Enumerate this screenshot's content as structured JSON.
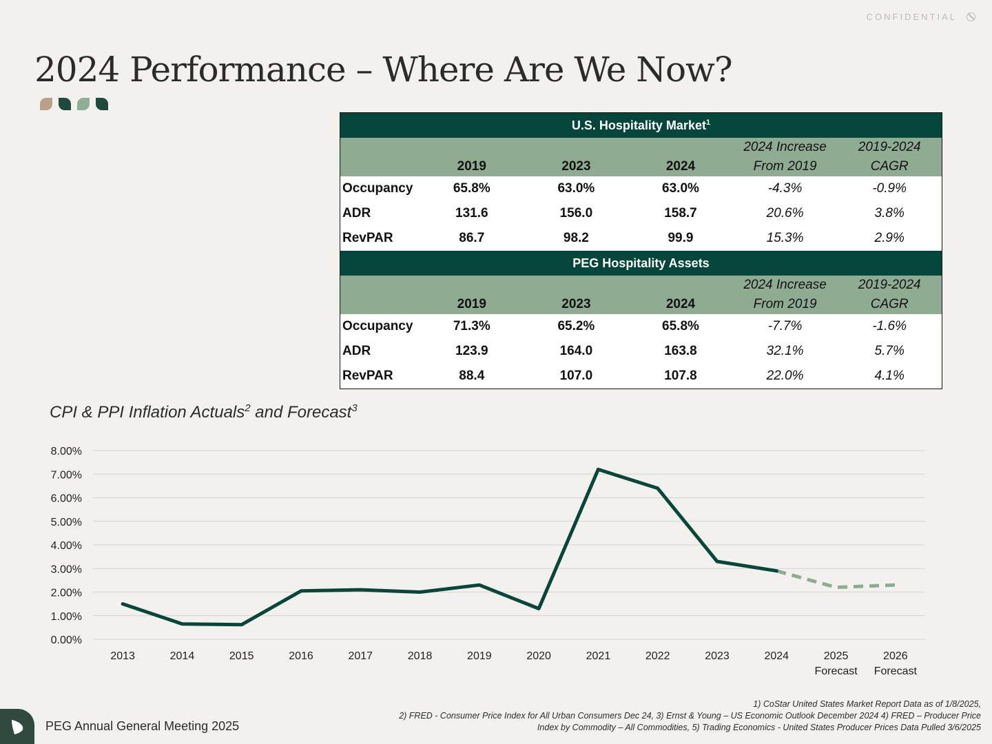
{
  "header": {
    "confidential": "CONFIDENTIAL",
    "title": "2024 Performance – Where Are We Now?"
  },
  "tables": [
    {
      "title": "U.S. Hospitality Market",
      "title_sup": "1",
      "columns": [
        "2019",
        "2023",
        "2024"
      ],
      "col_increase": [
        "2024 Increase",
        "From 2019"
      ],
      "col_cagr": [
        "2019-2024",
        "CAGR"
      ],
      "rows": [
        {
          "label": "Occupancy",
          "v2019": "65.8%",
          "v2023": "63.0%",
          "v2024": "63.0%",
          "increase": "-4.3%",
          "cagr": "-0.9%"
        },
        {
          "label": "ADR",
          "v2019": "131.6",
          "v2023": "156.0",
          "v2024": "158.7",
          "increase": "20.6%",
          "cagr": "3.8%"
        },
        {
          "label": "RevPAR",
          "v2019": "86.7",
          "v2023": "98.2",
          "v2024": "99.9",
          "increase": "15.3%",
          "cagr": "2.9%"
        }
      ]
    },
    {
      "title": "PEG Hospitality Assets",
      "columns": [
        "2019",
        "2023",
        "2024"
      ],
      "col_increase": [
        "2024 Increase",
        "From 2019"
      ],
      "col_cagr": [
        "2019-2024",
        "CAGR"
      ],
      "rows": [
        {
          "label": "Occupancy",
          "v2019": "71.3%",
          "v2023": "65.2%",
          "v2024": "65.8%",
          "increase": "-7.7%",
          "cagr": "-1.6%"
        },
        {
          "label": "ADR",
          "v2019": "123.9",
          "v2023": "164.0",
          "v2024": "163.8",
          "increase": "32.1%",
          "cagr": "5.7%"
        },
        {
          "label": "RevPAR",
          "v2019": "88.4",
          "v2023": "107.0",
          "v2024": "107.8",
          "increase": "22.0%",
          "cagr": "4.1%"
        }
      ]
    }
  ],
  "chart_title": {
    "text1": "CPI & PPI Inflation Actuals",
    "sup1": "2",
    "text2": " and Forecast",
    "sup2": "3"
  },
  "chart_data": {
    "type": "line",
    "title": "CPI & PPI Inflation Actuals and Forecast",
    "categories": [
      "2013",
      "2014",
      "2015",
      "2016",
      "2017",
      "2018",
      "2019",
      "2020",
      "2021",
      "2022",
      "2023",
      "2024",
      "2025 Forecast",
      "2026 Forecast"
    ],
    "category_lines": [
      [
        "2013"
      ],
      [
        "2014"
      ],
      [
        "2015"
      ],
      [
        "2016"
      ],
      [
        "2017"
      ],
      [
        "2018"
      ],
      [
        "2019"
      ],
      [
        "2020"
      ],
      [
        "2021"
      ],
      [
        "2022"
      ],
      [
        "2023"
      ],
      [
        "2024"
      ],
      [
        "2025",
        "Forecast"
      ],
      [
        "2026",
        "Forecast"
      ]
    ],
    "actual_values": [
      1.5,
      0.65,
      0.62,
      2.05,
      2.1,
      2.0,
      2.3,
      1.3,
      7.2,
      6.4,
      3.3,
      2.9,
      null,
      null
    ],
    "forecast_values": [
      null,
      null,
      null,
      null,
      null,
      null,
      null,
      null,
      null,
      null,
      null,
      2.9,
      2.2,
      2.3
    ],
    "yticks": [
      "0.00%",
      "1.00%",
      "2.00%",
      "3.00%",
      "4.00%",
      "5.00%",
      "6.00%",
      "7.00%",
      "8.00%"
    ],
    "ylim": [
      0,
      8
    ],
    "grid": true,
    "series_colors": {
      "actual": "#06473a",
      "forecast": "#8fac93"
    }
  },
  "footer": {
    "event": "PEG Annual General Meeting 2025",
    "footnotes": [
      "1) CoStar United States Market Report Data as of 1/8/2025,",
      "2) FRED - Consumer Price Index for All Urban Consumers Dec 24, 3) Ernst & Young – US Economic Outlook December 2024 4) FRED – Producer Price",
      "Index by Commodity – All Commodities, 5) Trading Economics - United States Producer Prices Data Pulled 3/6/2025"
    ]
  }
}
